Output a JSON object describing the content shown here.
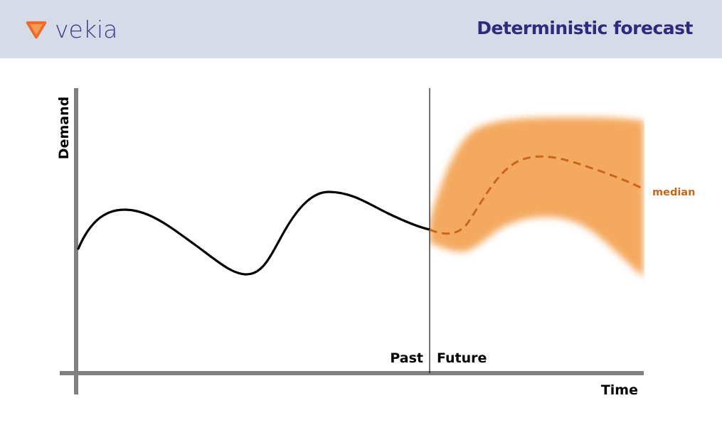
{
  "header": {
    "brand": "vekia",
    "title": "Deterministic forecast",
    "logo_icon": "vekia-logo-icon"
  },
  "diagram": {
    "y_axis_label": "Demand",
    "x_axis_label": "Time",
    "past_label": "Past",
    "future_label": "Future",
    "median_label": "median"
  },
  "colors": {
    "header_bg": "#d5dce7",
    "brand": "#3d3a8e",
    "title": "#2e2a7e",
    "band": "#f4a95e",
    "median": "#c8661a",
    "axis": "#7f7f7f"
  }
}
